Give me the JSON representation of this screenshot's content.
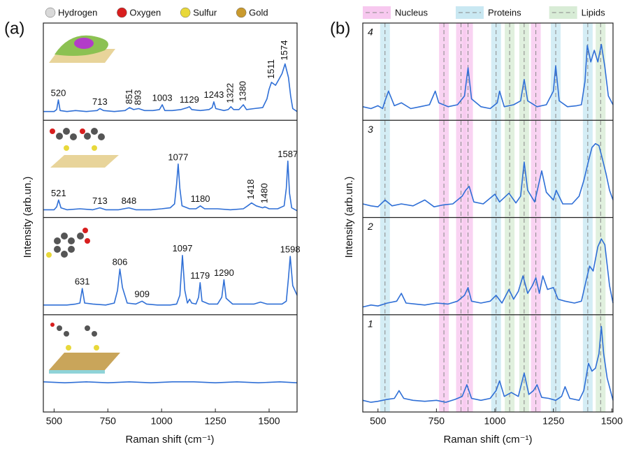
{
  "chart_data": [
    {
      "type": "line",
      "panel_label": "(a)",
      "x_label": "Raman shift (cm⁻¹)",
      "y_label": "Intensity (arb.un.)",
      "xlim": [
        450,
        1630
      ],
      "xticks": [
        500,
        750,
        1000,
        1250,
        1500
      ],
      "ylim": [
        0,
        100
      ],
      "legend": [
        {
          "name": "Hydrogen",
          "color": "#d9d9d9"
        },
        {
          "name": "Oxygen",
          "color": "#d81e1e"
        },
        {
          "name": "Sulfur",
          "color": "#e8d83a"
        },
        {
          "name": "Gold",
          "color": "#c99a2e"
        }
      ],
      "series": [
        {
          "color": "#2f6fd6",
          "x": [
            450,
            500,
            512,
            520,
            528,
            560,
            600,
            650,
            700,
            713,
            730,
            780,
            830,
            851,
            870,
            893,
            920,
            960,
            990,
            1003,
            1015,
            1050,
            1090,
            1120,
            1129,
            1140,
            1180,
            1220,
            1235,
            1243,
            1252,
            1290,
            1310,
            1322,
            1335,
            1360,
            1380,
            1395,
            1430,
            1470,
            1490,
            1500,
            1511,
            1530,
            1545,
            1560,
            1574,
            1590,
            1600,
            1610,
            1630
          ],
          "values": [
            9,
            9,
            11,
            21,
            10,
            9,
            10,
            9,
            10,
            12,
            10,
            9,
            10,
            13,
            11,
            12,
            10,
            10,
            11,
            16,
            10,
            10,
            11,
            13,
            14,
            11,
            10,
            11,
            13,
            19,
            12,
            10,
            11,
            14,
            11,
            11,
            16,
            11,
            12,
            13,
            22,
            32,
            39,
            36,
            42,
            48,
            58,
            44,
            25,
            12,
            9
          ],
          "peak_labels": [
            520,
            713,
            851,
            893,
            1003,
            1129,
            1243,
            1322,
            1380,
            1511,
            1574
          ]
        },
        {
          "color": "#2f6fd6",
          "x": [
            450,
            500,
            512,
            521,
            532,
            560,
            620,
            680,
            713,
            740,
            800,
            848,
            880,
            950,
            1000,
            1040,
            1060,
            1070,
            1077,
            1085,
            1095,
            1130,
            1160,
            1180,
            1200,
            1260,
            1320,
            1380,
            1400,
            1418,
            1440,
            1470,
            1480,
            1500,
            1540,
            1570,
            1580,
            1587,
            1595,
            1605,
            1630
          ],
          "values": [
            8,
            8,
            11,
            18,
            10,
            8,
            9,
            8,
            10,
            8,
            8,
            10,
            8,
            8,
            9,
            10,
            14,
            35,
            55,
            30,
            12,
            9,
            9,
            12,
            9,
            9,
            8,
            9,
            12,
            15,
            12,
            10,
            11,
            9,
            9,
            12,
            30,
            58,
            25,
            10,
            7
          ],
          "peak_labels": [
            521,
            713,
            848,
            1077,
            1180,
            1418,
            1480,
            1587
          ]
        },
        {
          "color": "#2f6fd6",
          "x": [
            450,
            500,
            560,
            600,
            620,
            631,
            642,
            680,
            740,
            780,
            795,
            806,
            818,
            840,
            880,
            909,
            930,
            980,
            1040,
            1070,
            1085,
            1097,
            1108,
            1120,
            1130,
            1140,
            1160,
            1172,
            1179,
            1188,
            1220,
            1260,
            1280,
            1290,
            1300,
            1330,
            1380,
            1430,
            1460,
            1490,
            1530,
            1560,
            1580,
            1590,
            1598,
            1610,
            1630
          ],
          "values": [
            10,
            10,
            10,
            11,
            12,
            27,
            12,
            11,
            10,
            12,
            25,
            47,
            28,
            12,
            11,
            14,
            11,
            10,
            10,
            11,
            20,
            61,
            25,
            12,
            16,
            12,
            11,
            18,
            33,
            14,
            11,
            11,
            18,
            36,
            17,
            11,
            11,
            11,
            13,
            11,
            11,
            11,
            14,
            38,
            60,
            30,
            20
          ],
          "peak_labels": [
            631,
            806,
            909,
            1097,
            1179,
            1290,
            1598
          ]
        },
        {
          "color": "#2f6fd6",
          "x": [
            450,
            550,
            650,
            750,
            850,
            950,
            1050,
            1150,
            1250,
            1350,
            1450,
            1550,
            1630
          ],
          "values": [
            31,
            30,
            31,
            30,
            31,
            30,
            31,
            31,
            30,
            31,
            30,
            31,
            30
          ],
          "peak_labels": []
        }
      ]
    },
    {
      "type": "line",
      "panel_label": "(b)",
      "x_label": "Raman shift (cm⁻¹)",
      "y_label": "Intensity (arb.un.)",
      "xlim": [
        435,
        1505
      ],
      "xticks": [
        500,
        750,
        1000,
        1250,
        1500
      ],
      "ylim": [
        0,
        100
      ],
      "bands": [
        {
          "name": "Nucleus",
          "color": "#f7c8ef",
          "positions": [
            782,
            855,
            885,
            1175
          ]
        },
        {
          "name": "Proteins",
          "color": "#c9e8f2",
          "positions": [
            530,
            1005,
            1260,
            1397
          ]
        },
        {
          "name": "Lipids",
          "color": "#d8ecd6",
          "positions": [
            1063,
            1125,
            1452
          ]
        }
      ],
      "series": [
        {
          "label": "4",
          "color": "#2f6fd6",
          "x": [
            435,
            470,
            500,
            520,
            530,
            545,
            570,
            600,
            640,
            680,
            720,
            745,
            760,
            800,
            840,
            870,
            885,
            900,
            940,
            980,
            1010,
            1020,
            1040,
            1080,
            1110,
            1125,
            1140,
            1180,
            1220,
            1250,
            1260,
            1275,
            1310,
            1350,
            1370,
            1385,
            1395,
            1410,
            1425,
            1440,
            1455,
            1470,
            1485,
            1505
          ],
          "values": [
            14,
            12,
            15,
            12,
            20,
            30,
            15,
            18,
            12,
            14,
            16,
            30,
            18,
            14,
            16,
            25,
            54,
            22,
            14,
            12,
            18,
            30,
            14,
            16,
            20,
            42,
            20,
            14,
            16,
            30,
            56,
            20,
            14,
            15,
            16,
            40,
            77,
            60,
            72,
            60,
            78,
            55,
            25,
            16
          ]
        },
        {
          "label": "3",
          "color": "#2f6fd6",
          "x": [
            435,
            470,
            500,
            530,
            560,
            600,
            650,
            700,
            740,
            780,
            820,
            860,
            875,
            890,
            910,
            950,
            1000,
            1020,
            1060,
            1090,
            1110,
            1125,
            1140,
            1170,
            1200,
            1220,
            1250,
            1262,
            1290,
            1330,
            1360,
            1380,
            1400,
            1415,
            1430,
            1445,
            1460,
            1475,
            1490,
            1505
          ],
          "values": [
            14,
            12,
            11,
            18,
            12,
            14,
            12,
            18,
            11,
            13,
            14,
            22,
            28,
            32,
            16,
            14,
            24,
            16,
            25,
            15,
            22,
            57,
            28,
            16,
            48,
            26,
            18,
            28,
            14,
            14,
            22,
            38,
            58,
            72,
            76,
            74,
            60,
            45,
            28,
            18
          ]
        },
        {
          "label": "2",
          "color": "#2f6fd6",
          "x": [
            435,
            470,
            500,
            540,
            580,
            600,
            620,
            660,
            700,
            750,
            800,
            840,
            870,
            885,
            900,
            940,
            980,
            1005,
            1030,
            1060,
            1080,
            1100,
            1120,
            1140,
            1160,
            1175,
            1190,
            1205,
            1225,
            1250,
            1270,
            1300,
            1340,
            1370,
            1390,
            1405,
            1420,
            1440,
            1455,
            1470,
            1490,
            1505
          ],
          "values": [
            8,
            10,
            9,
            12,
            14,
            22,
            12,
            11,
            10,
            12,
            11,
            14,
            20,
            28,
            14,
            12,
            14,
            20,
            12,
            26,
            16,
            24,
            40,
            22,
            30,
            38,
            22,
            40,
            26,
            28,
            16,
            14,
            12,
            14,
            35,
            50,
            45,
            70,
            78,
            72,
            30,
            12
          ]
        },
        {
          "label": "1",
          "color": "#2f6fd6",
          "x": [
            435,
            470,
            500,
            540,
            570,
            590,
            610,
            650,
            700,
            750,
            790,
            830,
            860,
            880,
            900,
            940,
            980,
            1005,
            1020,
            1040,
            1070,
            1100,
            1125,
            1145,
            1165,
            1180,
            1200,
            1230,
            1260,
            1285,
            1300,
            1320,
            1360,
            1380,
            1400,
            1415,
            1430,
            1445,
            1455,
            1465,
            1480,
            1505
          ],
          "values": [
            12,
            10,
            11,
            13,
            14,
            22,
            14,
            12,
            11,
            12,
            10,
            13,
            16,
            28,
            14,
            12,
            14,
            22,
            32,
            16,
            20,
            16,
            40,
            18,
            22,
            28,
            15,
            14,
            12,
            16,
            26,
            14,
            12,
            22,
            50,
            42,
            45,
            60,
            88,
            60,
            35,
            12
          ]
        }
      ]
    }
  ]
}
